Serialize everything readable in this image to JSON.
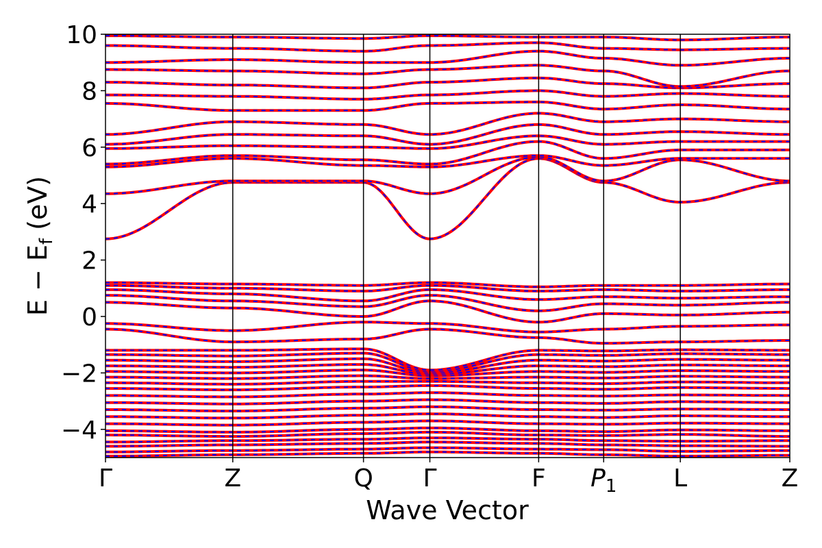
{
  "chart_data": {
    "type": "line",
    "title": "",
    "xlabel": "Wave Vector",
    "ylabel_main": "E − E",
    "ylabel_sub": "f",
    "ylabel_unit": " (eV)",
    "ylim": [
      -5,
      10
    ],
    "yticks": [
      {
        "value": 10,
        "label": "10"
      },
      {
        "value": 8,
        "label": "8"
      },
      {
        "value": 6,
        "label": "6"
      },
      {
        "value": 4,
        "label": "4"
      },
      {
        "value": 2,
        "label": "2"
      },
      {
        "value": 0,
        "label": "0"
      },
      {
        "value": -2,
        "label": "−2"
      },
      {
        "value": -4,
        "label": "−4"
      }
    ],
    "kpoints": [
      {
        "label": "Γ",
        "x": 0.0
      },
      {
        "label": "Z",
        "x": 0.186
      },
      {
        "label": "Q",
        "x": 0.377
      },
      {
        "label": "Γ",
        "x": 0.474
      },
      {
        "label": "F",
        "x": 0.633
      },
      {
        "label": "P",
        "sub": "1",
        "x": 0.728
      },
      {
        "label": "L",
        "x": 0.84
      },
      {
        "label": "Z",
        "x": 1.0
      }
    ],
    "series_styles": [
      {
        "style": "solid",
        "color": "#ff0000"
      },
      {
        "style": "dashed",
        "color": "#0000ff"
      }
    ],
    "bands": [
      [
        -4.95,
        -4.9,
        -4.85,
        -4.8,
        -4.85,
        -4.9,
        -4.95,
        -4.92
      ],
      [
        -4.8,
        -4.75,
        -4.7,
        -4.65,
        -4.7,
        -4.72,
        -4.78,
        -4.75
      ],
      [
        -4.6,
        -4.55,
        -4.5,
        -4.45,
        -4.5,
        -4.55,
        -4.58,
        -4.6
      ],
      [
        -4.45,
        -4.4,
        -4.35,
        -4.3,
        -4.35,
        -4.4,
        -4.42,
        -4.4
      ],
      [
        -4.2,
        -4.25,
        -4.15,
        -4.1,
        -4.2,
        -4.22,
        -4.18,
        -4.25
      ],
      [
        -4.05,
        -4.1,
        -4.0,
        -3.95,
        -4.05,
        -4.08,
        -4.02,
        -4.05
      ],
      [
        -3.8,
        -3.85,
        -3.75,
        -3.7,
        -3.8,
        -3.82,
        -3.78,
        -3.8
      ],
      [
        -3.55,
        -3.6,
        -3.5,
        -3.45,
        -3.55,
        -3.58,
        -3.52,
        -3.55
      ],
      [
        -3.3,
        -3.35,
        -3.25,
        -3.2,
        -3.3,
        -3.32,
        -3.28,
        -3.3
      ],
      [
        -3.05,
        -3.1,
        -3.0,
        -2.95,
        -3.05,
        -3.08,
        -3.02,
        -3.05
      ],
      [
        -2.8,
        -2.85,
        -2.75,
        -2.7,
        -2.8,
        -2.82,
        -2.78,
        -2.8
      ],
      [
        -2.55,
        -2.6,
        -2.5,
        -2.45,
        -2.55,
        -2.58,
        -2.52,
        -2.55
      ],
      [
        -2.35,
        -2.4,
        -2.3,
        -2.3,
        -2.35,
        -2.38,
        -2.32,
        -2.35
      ],
      [
        -2.15,
        -2.2,
        -2.1,
        -2.2,
        -2.15,
        -2.18,
        -2.12,
        -2.15
      ],
      [
        -1.95,
        -2.0,
        -1.9,
        -2.1,
        -1.95,
        -1.98,
        -1.92,
        -1.95
      ],
      [
        -1.75,
        -1.8,
        -1.7,
        -2.05,
        -1.75,
        -1.78,
        -1.72,
        -1.75
      ],
      [
        -1.55,
        -1.6,
        -1.5,
        -2.0,
        -1.55,
        -1.58,
        -1.52,
        -1.55
      ],
      [
        -1.35,
        -1.4,
        -1.3,
        -1.95,
        -1.35,
        -1.38,
        -1.32,
        -1.35
      ],
      [
        -1.2,
        -1.2,
        -1.15,
        -1.9,
        -1.2,
        -1.22,
        -1.18,
        -1.2
      ],
      [
        -0.45,
        -0.9,
        -0.8,
        -0.45,
        -0.75,
        -0.95,
        -0.9,
        -0.85
      ],
      [
        -0.25,
        -0.5,
        -0.2,
        -0.25,
        -0.55,
        -0.45,
        -0.35,
        -0.3
      ],
      [
        0.5,
        0.3,
        0.0,
        0.55,
        -0.2,
        0.1,
        0.05,
        0.15
      ],
      [
        0.75,
        0.55,
        0.35,
        0.75,
        0.2,
        0.45,
        0.4,
        0.5
      ],
      [
        0.95,
        0.8,
        0.55,
        0.95,
        0.6,
        0.7,
        0.65,
        0.7
      ],
      [
        1.1,
        1.0,
        0.9,
        1.1,
        0.9,
        0.95,
        0.9,
        0.95
      ],
      [
        1.2,
        1.15,
        1.1,
        1.2,
        1.05,
        1.1,
        1.1,
        1.15
      ],
      [
        2.75,
        4.75,
        4.75,
        2.75,
        5.6,
        4.75,
        4.05,
        4.75
      ],
      [
        4.35,
        4.8,
        4.8,
        4.35,
        5.65,
        4.8,
        5.55,
        4.8
      ],
      [
        5.3,
        5.6,
        5.35,
        5.3,
        5.7,
        5.35,
        5.6,
        5.6
      ],
      [
        5.4,
        5.7,
        5.55,
        5.4,
        6.2,
        5.6,
        5.9,
        5.9
      ],
      [
        5.95,
        6.05,
        6.0,
        5.95,
        6.4,
        6.1,
        6.2,
        6.2
      ],
      [
        6.1,
        6.45,
        6.4,
        6.1,
        6.8,
        6.45,
        6.55,
        6.45
      ],
      [
        6.45,
        6.9,
        6.8,
        6.45,
        7.2,
        6.9,
        7.0,
        6.9
      ],
      [
        7.55,
        7.3,
        7.3,
        7.55,
        7.6,
        7.35,
        7.5,
        7.35
      ],
      [
        7.85,
        7.8,
        7.7,
        7.85,
        8.0,
        7.8,
        7.9,
        7.8
      ],
      [
        8.3,
        8.2,
        8.1,
        8.3,
        8.45,
        8.25,
        8.1,
        8.25
      ],
      [
        8.75,
        8.7,
        8.6,
        8.75,
        8.9,
        8.7,
        8.15,
        8.7
      ],
      [
        9.0,
        9.1,
        9.0,
        9.0,
        9.4,
        9.15,
        8.9,
        9.15
      ],
      [
        9.6,
        9.5,
        9.4,
        9.6,
        9.7,
        9.5,
        9.45,
        9.5
      ],
      [
        9.95,
        9.9,
        9.85,
        9.95,
        9.9,
        9.9,
        9.8,
        9.9
      ]
    ]
  }
}
